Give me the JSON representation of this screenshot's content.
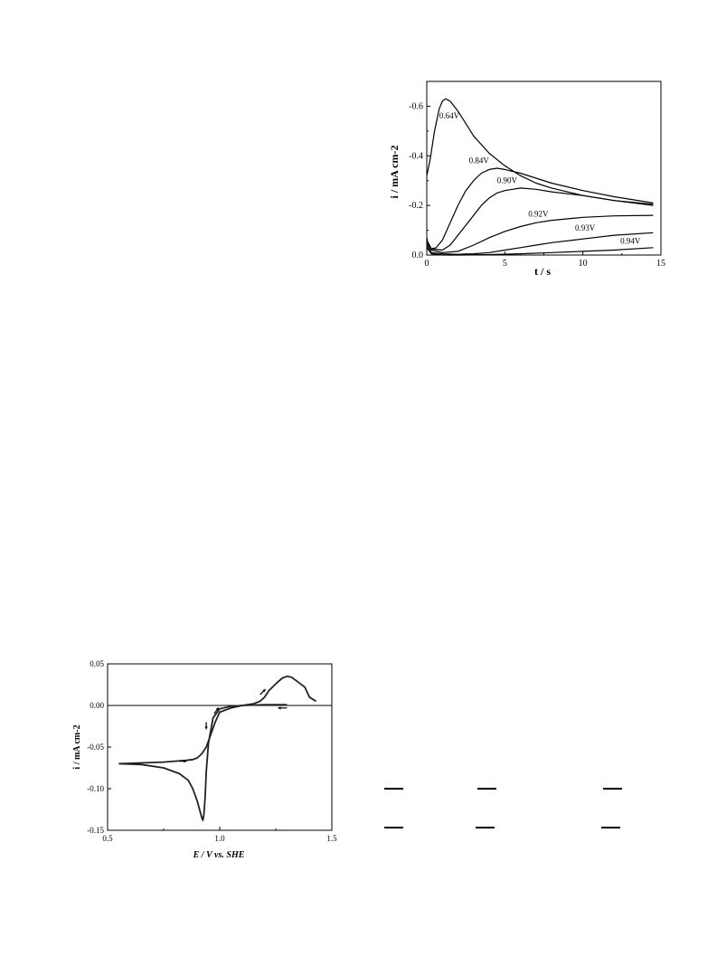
{
  "chart_data": [
    {
      "type": "line",
      "title": "",
      "xlabel": "t / s",
      "ylabel": "i / mA cm-2",
      "xlim": [
        0,
        15
      ],
      "ylim": [
        0.0,
        -0.7
      ],
      "y_axis_inverted": true,
      "x_ticks": [
        "0",
        "5",
        "10",
        "15"
      ],
      "y_ticks": [
        "-0.6",
        "-0.4",
        "-0.2",
        "0.0"
      ],
      "series": [
        {
          "name": "0.64V",
          "x": [
            0,
            0.2,
            0.5,
            0.8,
            1.0,
            1.2,
            1.5,
            2,
            2.5,
            3,
            4,
            5,
            6,
            7,
            8,
            10,
            12,
            14.5
          ],
          "y": [
            -0.32,
            -0.38,
            -0.5,
            -0.59,
            -0.62,
            -0.63,
            -0.62,
            -0.58,
            -0.53,
            -0.48,
            -0.41,
            -0.36,
            -0.32,
            -0.29,
            -0.27,
            -0.24,
            -0.22,
            -0.2
          ]
        },
        {
          "name": "0.84V",
          "x": [
            0,
            0.1,
            0.3,
            0.6,
            1,
            1.5,
            2,
            2.5,
            3,
            3.5,
            4,
            4.5,
            5,
            6,
            7,
            8,
            10,
            12,
            14.5
          ],
          "y": [
            -0.07,
            -0.04,
            -0.025,
            -0.03,
            -0.06,
            -0.13,
            -0.2,
            -0.26,
            -0.3,
            -0.33,
            -0.345,
            -0.35,
            -0.345,
            -0.33,
            -0.31,
            -0.29,
            -0.26,
            -0.235,
            -0.21
          ]
        },
        {
          "name": "0.90V",
          "x": [
            0,
            0.3,
            1,
            1.5,
            2,
            2.5,
            3,
            3.5,
            4,
            4.5,
            5,
            5.5,
            6,
            7,
            8,
            10,
            12,
            14.5
          ],
          "y": [
            -0.06,
            -0.025,
            -0.02,
            -0.04,
            -0.08,
            -0.12,
            -0.16,
            -0.2,
            -0.23,
            -0.25,
            -0.26,
            -0.265,
            -0.27,
            -0.265,
            -0.255,
            -0.24,
            -0.22,
            -0.205
          ]
        },
        {
          "name": "0.92V",
          "x": [
            0,
            0.3,
            1,
            2,
            3,
            4,
            5,
            6,
            7,
            8,
            10,
            12,
            14.5
          ],
          "y": [
            -0.05,
            -0.02,
            -0.01,
            -0.015,
            -0.04,
            -0.07,
            -0.095,
            -0.115,
            -0.13,
            -0.14,
            -0.152,
            -0.158,
            -0.16
          ]
        },
        {
          "name": "0.93V",
          "x": [
            0,
            0.3,
            1,
            2,
            3,
            4,
            5,
            6,
            7,
            8,
            10,
            12,
            14.5
          ],
          "y": [
            -0.04,
            -0.01,
            -0.005,
            -0.003,
            -0.005,
            -0.01,
            -0.02,
            -0.03,
            -0.04,
            -0.05,
            -0.065,
            -0.08,
            -0.09
          ]
        },
        {
          "name": "0.94V",
          "x": [
            0,
            0.3,
            1,
            2,
            4,
            6,
            8,
            10,
            12,
            14.5
          ],
          "y": [
            -0.03,
            -0.005,
            0,
            0,
            -0.002,
            -0.005,
            -0.01,
            -0.015,
            -0.02,
            -0.03
          ]
        }
      ],
      "annotations": [
        "0.64V",
        "0.84V",
        "0.90V",
        "0.92V",
        "0.93V",
        "0.94V"
      ]
    },
    {
      "type": "line",
      "title": "",
      "xlabel": "E / V vs. SHE",
      "ylabel": "i / mA cm-2",
      "xlim": [
        0.5,
        1.5
      ],
      "ylim": [
        -0.15,
        0.05
      ],
      "x_ticks": [
        "0.5",
        "1.0",
        "1.5"
      ],
      "y_ticks": [
        "0.05",
        "0.00",
        "-0.05",
        "-0.10",
        "-0.15"
      ],
      "zero_line": true,
      "series": [
        {
          "name": "",
          "x": [
            0.55,
            0.65,
            0.75,
            0.82,
            0.86,
            0.88,
            0.9,
            0.91,
            0.92,
            0.925,
            0.93,
            0.935,
            0.94,
            0.95,
            0.97,
            1.0,
            1.05,
            1.1,
            1.2,
            1.3
          ],
          "y": [
            -0.07,
            -0.071,
            -0.075,
            -0.082,
            -0.09,
            -0.1,
            -0.115,
            -0.125,
            -0.135,
            -0.138,
            -0.13,
            -0.11,
            -0.08,
            -0.045,
            -0.015,
            -0.004,
            -0.001,
            0,
            0.001,
            0.001
          ]
        },
        {
          "name": "",
          "x": [
            0.55,
            0.65,
            0.75,
            0.8,
            0.85,
            0.88,
            0.9,
            0.92,
            0.94,
            0.96,
            0.98,
            1.0,
            1.05,
            1.1,
            1.15,
            1.18,
            1.2,
            1.22,
            1.25,
            1.28,
            1.3,
            1.32,
            1.35,
            1.38,
            1.4,
            1.43
          ],
          "y": [
            -0.07,
            -0.069,
            -0.068,
            -0.067,
            -0.066,
            -0.065,
            -0.063,
            -0.058,
            -0.05,
            -0.035,
            -0.02,
            -0.008,
            -0.003,
            0,
            0.002,
            0.005,
            0.01,
            0.018,
            0.026,
            0.033,
            0.035,
            0.034,
            0.028,
            0.022,
            0.01,
            0.005
          ]
        }
      ],
      "arrows": [
        "right",
        "down",
        "up-right",
        "up-right",
        "left"
      ]
    }
  ]
}
